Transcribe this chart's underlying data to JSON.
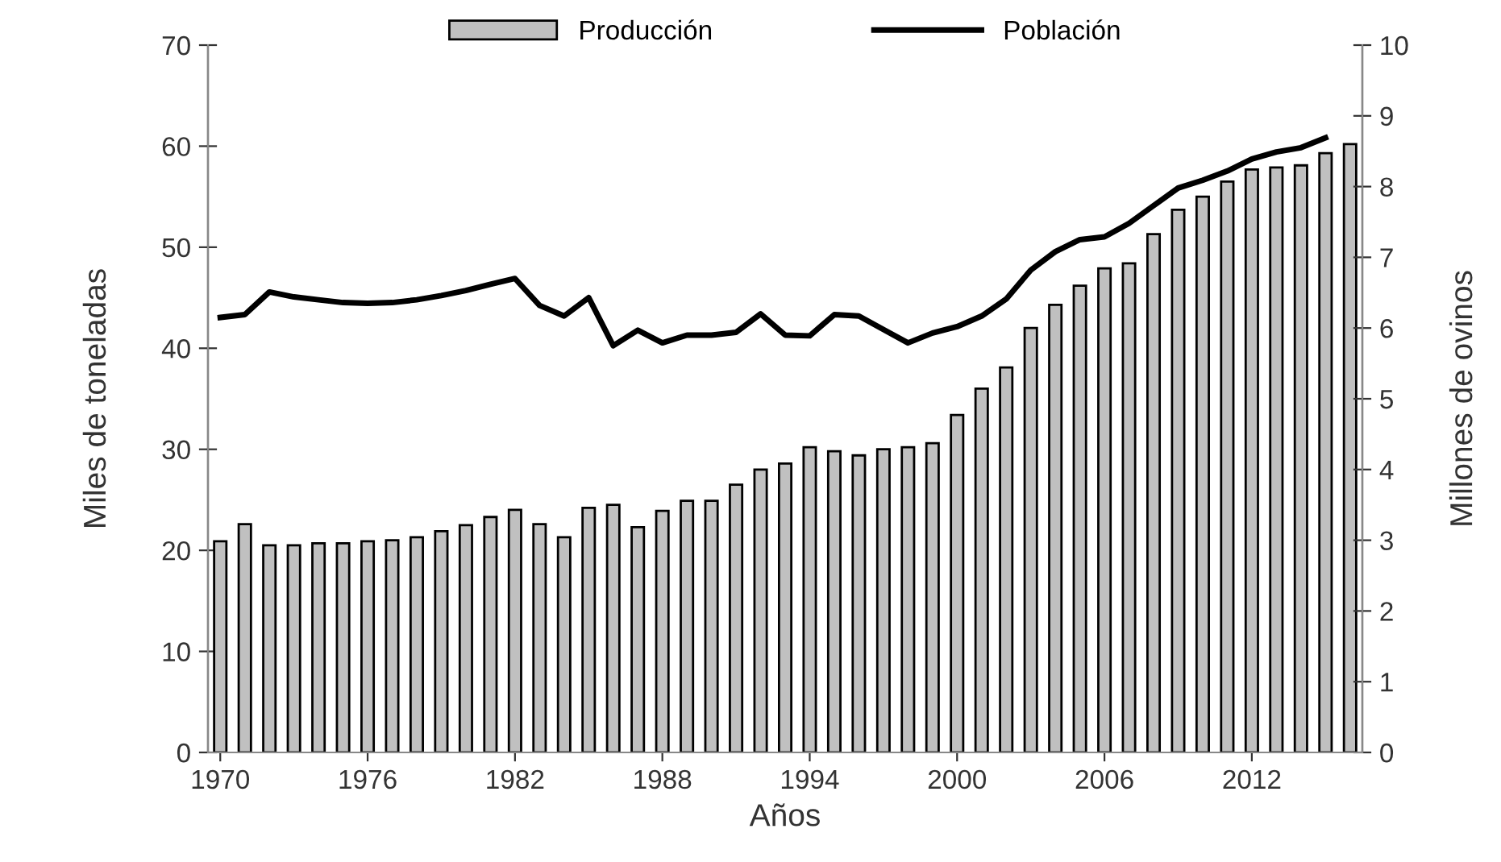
{
  "chart_data": {
    "type": "bar",
    "xlabel": "Años",
    "ylabel": "Miles de toneladas",
    "y2label": "Millones de ovinos",
    "categories": [
      "1970",
      null,
      null,
      null,
      null,
      null,
      "1976",
      null,
      null,
      null,
      null,
      null,
      "1982",
      null,
      null,
      null,
      null,
      null,
      "1988",
      null,
      null,
      null,
      null,
      null,
      "1994",
      null,
      null,
      null,
      null,
      null,
      "2000",
      null,
      null,
      null,
      null,
      null,
      "2006",
      null,
      null,
      null,
      null,
      null,
      "2012",
      null,
      null,
      null,
      null
    ],
    "series": [
      {
        "name": "Producción",
        "color": "#c0c0c0",
        "values": [
          20.9,
          22.6,
          20.5,
          20.5,
          20.7,
          20.7,
          20.9,
          21.0,
          21.3,
          21.9,
          22.5,
          23.3,
          24.0,
          22.6,
          21.3,
          24.2,
          24.5,
          22.3,
          23.9,
          24.9,
          24.9,
          26.5,
          28.0,
          28.6,
          30.2,
          29.8,
          29.4,
          30.0,
          30.2,
          30.6,
          33.4,
          36.0,
          38.1,
          42.0,
          44.3,
          46.2,
          47.9,
          48.4,
          51.3,
          53.7,
          55.0,
          56.5,
          57.7,
          57.9,
          58.1,
          59.3,
          60.2
        ]
      },
      {
        "name": "Población",
        "type": "line",
        "axis": "y2",
        "color": "#000000",
        "values": [
          6.15,
          6.19,
          6.51,
          6.44,
          6.4,
          6.36,
          6.35,
          6.36,
          6.4,
          6.46,
          6.53,
          6.62,
          6.7,
          6.32,
          6.17,
          6.43,
          5.75,
          5.97,
          5.79,
          5.9,
          5.9,
          5.94,
          6.2,
          5.9,
          5.89,
          6.19,
          6.17,
          5.98,
          5.79,
          5.93,
          6.02,
          6.17,
          6.41,
          6.82,
          7.08,
          7.25,
          7.29,
          7.48,
          7.73,
          7.98,
          8.09,
          8.22,
          8.39,
          8.49,
          8.55,
          8.69,
          null
        ]
      }
    ],
    "ylim": [
      0,
      70
    ],
    "yticks": [
      0,
      10,
      20,
      30,
      40,
      50,
      60,
      70
    ],
    "y2lim": [
      0,
      10
    ],
    "y2ticks": [
      0,
      1,
      2,
      3,
      4,
      5,
      6,
      7,
      8,
      9,
      10
    ],
    "grid": false,
    "legend": "top",
    "marker": "none",
    "line_style": "solid"
  }
}
